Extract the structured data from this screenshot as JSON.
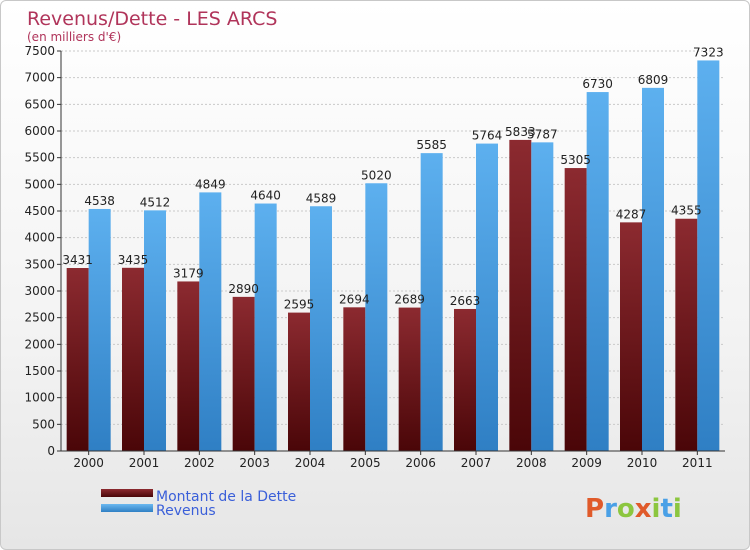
{
  "chart_data": {
    "type": "bar",
    "title": "Revenus/Dette - LES ARCS",
    "subtitle": "(en milliers d'€)",
    "categories": [
      "2000",
      "2001",
      "2002",
      "2003",
      "2004",
      "2005",
      "2006",
      "2007",
      "2008",
      "2009",
      "2010",
      "2011"
    ],
    "series": [
      {
        "name": "Montant de la Dette",
        "color": "#7a1f25",
        "values": [
          3431,
          3435,
          3179,
          2890,
          2595,
          2694,
          2689,
          2663,
          5833,
          5305,
          4287,
          4355
        ],
        "labels": [
          "3431",
          "3435",
          "3179",
          "2890",
          "2595",
          "2694",
          "2689",
          "2663",
          "5833",
          "5305",
          "4287",
          "4355"
        ]
      },
      {
        "name": "Revenus",
        "color": "#4aa0e6",
        "values": [
          4538,
          4512,
          4849,
          4640,
          4589,
          5020,
          5585,
          5764,
          5787,
          6730,
          6809,
          7323
        ],
        "labels": [
          "4538",
          "4512",
          "4849",
          "4640",
          "4589",
          "5020",
          "5585",
          "5764",
          "5787",
          "6730",
          "6809",
          "7323"
        ]
      }
    ],
    "ylim": [
      0,
      7500
    ],
    "yticks": [
      0,
      500,
      1000,
      1500,
      2000,
      2500,
      3000,
      3500,
      4000,
      4500,
      5000,
      5500,
      6000,
      6500,
      7000,
      7500
    ],
    "grid": true,
    "legend": "bottom-left"
  },
  "logo": {
    "text": "Proxiti"
  }
}
